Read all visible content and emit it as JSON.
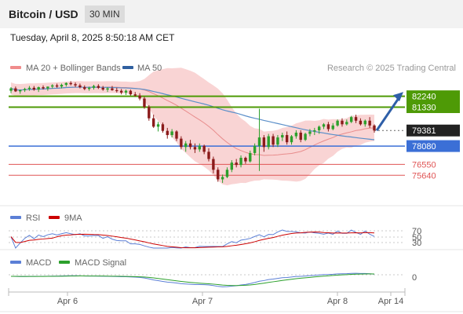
{
  "header": {
    "pair_title": "Bitcoin / USD",
    "timeframe": "30 MIN",
    "timestamp": "Tuesday, April 8, 2025 8:50:18 AM CET"
  },
  "legend": {
    "ma20_bollinger": "MA 20 + Bollinger Bands",
    "ma50": "MA 50",
    "copyright": "Research © 2025 Trading Central"
  },
  "colors": {
    "bullish": "#2ca02c",
    "bearish": "#8b1a1a",
    "bollinger_fill": "#f7c9c9",
    "ma20": "#e88c8c",
    "ma50": "#5b8fc9",
    "resistance": "#4e9a06",
    "support": "#3b6fd6",
    "pivot": "#e05555",
    "price_tag": "#222222",
    "forecast_arrow": "#2e5fa8",
    "rsi": "#5b7fd6",
    "rsi_ma": "#cc0000",
    "macd": "#5b7fd6",
    "macd_signal": "#2ca02c"
  },
  "chart_data": {
    "type": "candlestick",
    "y_range": [
      73100,
      84250
    ],
    "x_ticks": [
      "Apr 6",
      "Apr 7",
      "Apr 8",
      "Apr 14"
    ],
    "current_price": 79381,
    "levels": [
      {
        "label": "82240",
        "value": 82240,
        "kind": "resistance"
      },
      {
        "label": "81330",
        "value": 81330,
        "kind": "resistance"
      },
      {
        "label": "79381",
        "value": 79381,
        "kind": "last-price"
      },
      {
        "label": "78080",
        "value": 78080,
        "kind": "support"
      },
      {
        "label": "76550",
        "value": 76550,
        "kind": "pivot"
      },
      {
        "label": "75640",
        "value": 75640,
        "kind": "pivot"
      }
    ],
    "candles": [
      [
        82700,
        83000,
        82500,
        82900
      ],
      [
        82900,
        83050,
        82600,
        82650
      ],
      [
        82650,
        82800,
        82450,
        82750
      ],
      [
        82750,
        82950,
        82600,
        82850
      ],
      [
        82850,
        83100,
        82700,
        82950
      ],
      [
        82950,
        83100,
        82700,
        82800
      ],
      [
        82800,
        83050,
        82600,
        83000
      ],
      [
        83000,
        83150,
        82800,
        82900
      ],
      [
        82900,
        83050,
        82700,
        83050
      ],
      [
        83050,
        83250,
        82900,
        83150
      ],
      [
        83150,
        83300,
        82950,
        83050
      ],
      [
        83050,
        83300,
        82900,
        83200
      ],
      [
        83200,
        83400,
        83050,
        83350
      ],
      [
        83350,
        83500,
        83150,
        83250
      ],
      [
        83250,
        83400,
        83000,
        83150
      ],
      [
        83150,
        83300,
        82900,
        83000
      ],
      [
        83000,
        83150,
        82750,
        82850
      ],
      [
        82850,
        83050,
        82700,
        82950
      ],
      [
        82950,
        83200,
        82800,
        83100
      ],
      [
        83100,
        83250,
        82850,
        82950
      ],
      [
        82950,
        83100,
        82700,
        82800
      ],
      [
        82800,
        83000,
        82600,
        82900
      ],
      [
        82900,
        83100,
        82700,
        82750
      ],
      [
        82750,
        82950,
        82550,
        82700
      ],
      [
        82700,
        82850,
        82400,
        82550
      ],
      [
        82550,
        82800,
        82350,
        82700
      ],
      [
        82700,
        82800,
        82300,
        82400
      ],
      [
        82400,
        82600,
        82200,
        82300
      ],
      [
        82300,
        82500,
        81900,
        82050
      ],
      [
        82050,
        82200,
        81200,
        81350
      ],
      [
        81350,
        81500,
        80200,
        80400
      ],
      [
        80400,
        80700,
        79600,
        79700
      ],
      [
        79700,
        80100,
        79300,
        79900
      ],
      [
        79900,
        80050,
        79200,
        79350
      ],
      [
        79350,
        79600,
        78700,
        79000
      ],
      [
        79000,
        79500,
        78800,
        79300
      ],
      [
        79300,
        79400,
        78500,
        78700
      ],
      [
        78700,
        78900,
        77800,
        78000
      ],
      [
        78000,
        78500,
        77600,
        78300
      ],
      [
        78300,
        78600,
        77800,
        78000
      ],
      [
        78000,
        78300,
        77500,
        77800
      ],
      [
        77800,
        78300,
        77600,
        78100
      ],
      [
        78100,
        78200,
        77400,
        77600
      ],
      [
        77600,
        77900,
        76800,
        77000
      ],
      [
        77000,
        77200,
        75800,
        76100
      ],
      [
        76100,
        76300,
        75100,
        75300
      ],
      [
        75300,
        75700,
        75000,
        75500
      ],
      [
        75500,
        76300,
        75400,
        76100
      ],
      [
        76100,
        76900,
        75900,
        76700
      ],
      [
        76700,
        77000,
        76300,
        76500
      ],
      [
        76500,
        77300,
        76300,
        77100
      ],
      [
        77100,
        77200,
        76600,
        76800
      ],
      [
        76800,
        77700,
        76700,
        77500
      ],
      [
        77500,
        78300,
        77300,
        78100
      ],
      [
        78100,
        81200,
        76000,
        78800
      ],
      [
        78800,
        79000,
        77600,
        78000
      ],
      [
        78000,
        79100,
        77800,
        78900
      ],
      [
        78900,
        79100,
        78000,
        78200
      ],
      [
        78200,
        79000,
        78000,
        78800
      ],
      [
        78800,
        79200,
        78500,
        79000
      ],
      [
        79000,
        79300,
        78200,
        78400
      ],
      [
        78400,
        79000,
        78200,
        78900
      ],
      [
        78900,
        79400,
        78700,
        79200
      ],
      [
        79200,
        79400,
        78400,
        78600
      ],
      [
        78600,
        79200,
        78500,
        79100
      ],
      [
        79100,
        79500,
        78900,
        79300
      ],
      [
        79300,
        79600,
        79000,
        79400
      ],
      [
        79400,
        79800,
        79100,
        79700
      ],
      [
        79700,
        80000,
        79500,
        79900
      ],
      [
        79900,
        80100,
        79300,
        79500
      ],
      [
        79500,
        80000,
        79400,
        79800
      ],
      [
        79800,
        80300,
        79700,
        80200
      ],
      [
        80200,
        80400,
        79700,
        79900
      ],
      [
        79900,
        80300,
        79800,
        80100
      ],
      [
        80100,
        80600,
        80000,
        80500
      ],
      [
        80500,
        80700,
        80000,
        80200
      ],
      [
        80200,
        80400,
        79800,
        79900
      ],
      [
        79900,
        80300,
        79700,
        80200
      ],
      [
        80200,
        80500,
        79600,
        79800
      ],
      [
        79800,
        79900,
        79200,
        79381
      ]
    ],
    "rsi": {
      "name": "RSI",
      "ma_name": "9MA",
      "ticks": [
        "70",
        "50",
        "30"
      ],
      "range": [
        0,
        100
      ]
    },
    "macd": {
      "name": "MACD",
      "signal_name": "MACD Signal",
      "zero_label": "0"
    }
  }
}
